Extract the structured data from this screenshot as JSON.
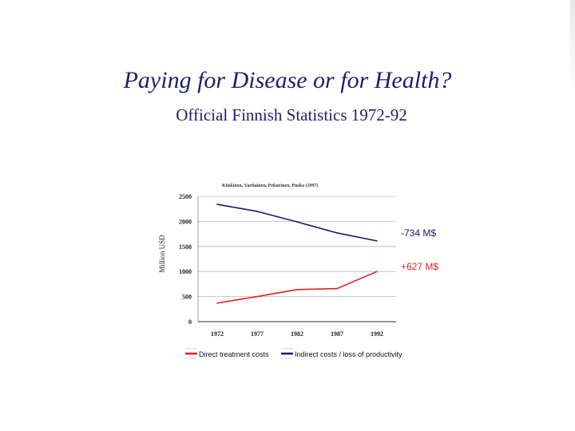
{
  "slide": {
    "title": "Paying for Disease or for Health?",
    "subtitle": "Official Finnish Statistics 1972-92"
  },
  "chart_data": {
    "type": "line",
    "title": "Kiiskinen, Vartiainen, Pekurinen, Puska (1997)",
    "xlabel": "",
    "ylabel": "Million USD",
    "x": [
      1972,
      1977,
      1982,
      1987,
      1992
    ],
    "xticks": [
      "1972",
      "1977",
      "1982",
      "1987",
      "1992"
    ],
    "yticks": [
      "0",
      "500",
      "1000",
      "1500",
      "2000",
      "2500"
    ],
    "ylim": [
      0,
      2500
    ],
    "grid": true,
    "legend_position": "bottom",
    "series": [
      {
        "name": "Direct treatment costs",
        "color": "#e02020",
        "values": [
          370,
          500,
          640,
          660,
          1000
        ],
        "annotation": "+627 M$"
      },
      {
        "name": "Indirect costs / loss of productivity",
        "color": "#1a1a6e",
        "values": [
          2340,
          2200,
          1990,
          1770,
          1610
        ],
        "annotation": "-734 M$"
      }
    ]
  }
}
